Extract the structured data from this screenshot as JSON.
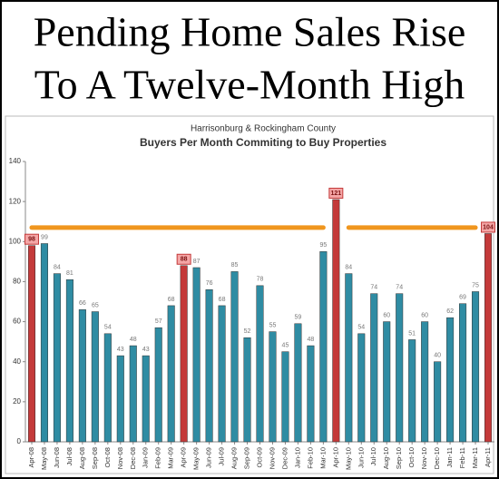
{
  "chart_data": {
    "type": "bar",
    "headline": [
      "Pending Home Sales Rise",
      "To A Twelve-Month High"
    ],
    "subtitle": "Harrisonburg & Rockingham County",
    "title": "Buyers Per Month Commiting to Buy Properties",
    "categories": [
      "Apr-08",
      "May-08",
      "Jun-08",
      "Jul-08",
      "Aug-08",
      "Sep-08",
      "Oct-08",
      "Nov-08",
      "Dec-08",
      "Jan-09",
      "Feb-09",
      "Mar-09",
      "Apr-09",
      "May-09",
      "Jun-09",
      "Jul-09",
      "Aug-09",
      "Sep-09",
      "Oct-09",
      "Nov-09",
      "Dec-09",
      "Jan-10",
      "Feb-10",
      "Mar-10",
      "Apr-10",
      "May-10",
      "Jun-10",
      "Jul-10",
      "Aug-10",
      "Sep-10",
      "Oct-10",
      "Nov-10",
      "Dec-10",
      "Jan-11",
      "Feb-11",
      "Mar-11",
      "Apr-11"
    ],
    "values": [
      98,
      99,
      84,
      81,
      66,
      65,
      54,
      43,
      48,
      43,
      57,
      68,
      88,
      87,
      76,
      68,
      85,
      52,
      78,
      55,
      45,
      59,
      48,
      95,
      121,
      84,
      54,
      74,
      60,
      74,
      51,
      60,
      40,
      62,
      69,
      75,
      104
    ],
    "colors": [
      "#c43a3a",
      "#2f8ca3",
      "#2f8ca3",
      "#2f8ca3",
      "#2f8ca3",
      "#2f8ca3",
      "#2f8ca3",
      "#2f8ca3",
      "#2f8ca3",
      "#2f8ca3",
      "#2f8ca3",
      "#2f8ca3",
      "#c43a3a",
      "#2f8ca3",
      "#2f8ca3",
      "#2f8ca3",
      "#2f8ca3",
      "#2f8ca3",
      "#2f8ca3",
      "#2f8ca3",
      "#2f8ca3",
      "#2f8ca3",
      "#2f8ca3",
      "#2f8ca3",
      "#c43a3a",
      "#2f8ca3",
      "#2f8ca3",
      "#2f8ca3",
      "#2f8ca3",
      "#2f8ca3",
      "#2f8ca3",
      "#2f8ca3",
      "#2f8ca3",
      "#2f8ca3",
      "#2f8ca3",
      "#2f8ca3",
      "#c43a3a"
    ],
    "highlight_color": "#c43a3a",
    "reference_lines": [
      {
        "value": 107,
        "from": "Apr-08",
        "to": "Mar-10",
        "color": "#f0961e"
      },
      {
        "value": 107,
        "from": "May-10",
        "to": "Mar-11",
        "color": "#f0961e"
      }
    ],
    "ylim": [
      0,
      140
    ],
    "yticks": [
      0,
      20,
      40,
      60,
      80,
      100,
      120,
      140
    ],
    "grid": false
  }
}
